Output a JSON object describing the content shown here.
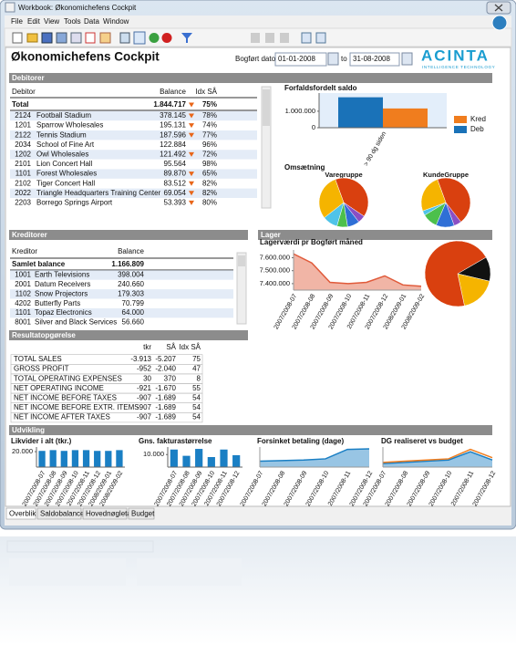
{
  "window": {
    "title": "Workbook: Økonomichefens Cockpit",
    "menu": [
      "File",
      "Edit",
      "View",
      "Tools",
      "Data",
      "Window"
    ]
  },
  "header": {
    "title": "Økonomichefens Cockpit",
    "date_label": "Bogført dato",
    "date_from": "01-01-2008",
    "date_sep": "to",
    "date_to": "31-08-2008",
    "logo": "ACINTA",
    "logo_tagline": "INTELLIGENCE TECHNOLOGY"
  },
  "sections": {
    "debitorer": "Debitorer",
    "kreditorer": "Kreditorer",
    "resultat": "Resultatopgørelse",
    "lager": "Lager",
    "udvikling": "Udvikling",
    "omsaetning": "Omsætning"
  },
  "debitorer": {
    "columns": [
      "Debitor",
      "Balance",
      "Idx SÅ"
    ],
    "total": {
      "name": "Total",
      "balance": "1.844.717",
      "down": true,
      "idx": "75%"
    },
    "rows": [
      {
        "code": "2124",
        "name": "Football Stadium",
        "balance": "378.145",
        "down": true,
        "idx": "78%"
      },
      {
        "code": "1201",
        "name": "Sparrow Wholesales",
        "balance": "195.131",
        "down": true,
        "idx": "74%"
      },
      {
        "code": "2122",
        "name": "Tennis Stadium",
        "balance": "187.596",
        "down": true,
        "idx": "77%"
      },
      {
        "code": "2034",
        "name": "School of Fine Art",
        "balance": "122.884",
        "down": false,
        "idx": "96%"
      },
      {
        "code": "1202",
        "name": "Owl Wholesales",
        "balance": "121.492",
        "down": true,
        "idx": "72%"
      },
      {
        "code": "2101",
        "name": "Lion Concert Hall",
        "balance": "95.564",
        "down": false,
        "idx": "98%"
      },
      {
        "code": "1101",
        "name": "Forest Wholesales",
        "balance": "89.870",
        "down": true,
        "idx": "65%"
      },
      {
        "code": "2102",
        "name": "Tiger Concert Hall",
        "balance": "83.512",
        "down": true,
        "idx": "82%"
      },
      {
        "code": "2022",
        "name": "Triangle Headquarters Training Center",
        "balance": "69.054",
        "down": true,
        "idx": "82%"
      },
      {
        "code": "2203",
        "name": "Borrego Springs Airport",
        "balance": "53.393",
        "down": true,
        "idx": "80%"
      }
    ]
  },
  "kreditorer": {
    "columns": [
      "Kreditor",
      "Balance"
    ],
    "total": {
      "name": "Samlet balance",
      "balance": "1.166.809"
    },
    "rows": [
      {
        "code": "1001",
        "name": "Earth Televisions",
        "balance": "398.004"
      },
      {
        "code": "2001",
        "name": "Datum Receivers",
        "balance": "240.660"
      },
      {
        "code": "1102",
        "name": "Snow Projectors",
        "balance": "179.303"
      },
      {
        "code": "4202",
        "name": "Butterfly Parts",
        "balance": "70.799"
      },
      {
        "code": "1101",
        "name": "Topaz Electronics",
        "balance": "64.000"
      },
      {
        "code": "8001",
        "name": "Silver and Black Services",
        "balance": "56.660"
      }
    ]
  },
  "resultat": {
    "columns": [
      "tkr",
      "SÅ",
      "Idx SÅ"
    ],
    "rows": [
      [
        "TOTAL SALES",
        "-3.913",
        "-5.207",
        "75"
      ],
      [
        "GROSS PROFIT",
        "-952",
        "-2.040",
        "47"
      ],
      [
        "TOTAL OPERATING EXPENSES",
        "30",
        "370",
        "8"
      ],
      [
        "NET OPERATING INCOME",
        "-921",
        "-1.670",
        "55"
      ],
      [
        "NET INCOME BEFORE TAXES",
        "-907",
        "-1.689",
        "54"
      ],
      [
        "NET INCOME BEFORE EXTR. ITEMS",
        "-907",
        "-1.689",
        "54"
      ],
      [
        "NET INCOME AFTER TAXES",
        "-907",
        "-1.689",
        "54"
      ]
    ]
  },
  "tabs": [
    "Overblik",
    "Saldobalance",
    "Hovednøgletal",
    "Budget"
  ],
  "chart_data": [
    {
      "type": "bar",
      "title": "Forfaldsfordelt saldo",
      "categories": [
        "> 90 dg siden"
      ],
      "series": [
        {
          "name": "Deb",
          "color": "#1a72b8",
          "values": [
            1844717
          ]
        },
        {
          "name": "Kred",
          "color": "#f07d1e",
          "values": [
            1166809
          ]
        }
      ],
      "ylim": [
        0,
        2100000
      ],
      "yticks": [
        0,
        {
          "value": 1000000,
          "label": "1.000.000"
        }
      ],
      "legend": "right"
    },
    {
      "type": "pie",
      "title": "Varegruppe",
      "values": [
        40,
        5,
        8,
        7,
        10,
        30
      ],
      "colors": [
        "#d9400f",
        "#8a4fc4",
        "#2f6fd6",
        "#4cc04c",
        "#4fc3e8",
        "#f5b400"
      ]
    },
    {
      "type": "pie",
      "title": "KundeGruppe",
      "values": [
        45,
        5,
        12,
        10,
        3,
        25
      ],
      "colors": [
        "#d9400f",
        "#8a4fc4",
        "#2f6fd6",
        "#4cc04c",
        "#4fc3e8",
        "#f5b400"
      ]
    },
    {
      "type": "line",
      "title": "Lagerværdi pr Bogført måned",
      "area": true,
      "color": "#e05a3a",
      "categories": [
        "2007/2008-07",
        "2007/2008-08",
        "2007/2008-09",
        "2007/2008-10",
        "2007/2008-11",
        "2007/2008-12",
        "2008/2009-01",
        "2008/2009-02"
      ],
      "values": [
        7630000,
        7560000,
        7410000,
        7400000,
        7410000,
        7460000,
        7390000,
        7380000
      ],
      "ylim": [
        7350000,
        7660000
      ],
      "yticks": [
        {
          "value": 7400000,
          "label": "7.400.000"
        },
        {
          "value": 7500000,
          "label": "7.500.000"
        },
        {
          "value": 7600000,
          "label": "7.600.000"
        }
      ]
    },
    {
      "type": "pie",
      "values": [
        12,
        18,
        70
      ],
      "colors": [
        "#111111",
        "#f5b400",
        "#d9400f"
      ]
    },
    {
      "type": "bar",
      "title": "Likvider i alt (tkr.)",
      "color": "#1a7fc4",
      "categories": [
        "2007/2008-07",
        "2007/2008-08",
        "2007/2008-09",
        "2007/2008-10",
        "2007/2008-11",
        "2007/2008-12",
        "2008/2009-01",
        "2008/2009-02"
      ],
      "values": [
        21000,
        22000,
        21000,
        22000,
        22000,
        21000,
        21000,
        22000
      ],
      "ylim": [
        0,
        26000
      ],
      "yticks": [
        {
          "value": 20000,
          "label": "20.000"
        }
      ]
    },
    {
      "type": "bar",
      "title": "Gns. fakturastørrelse",
      "color": "#1a7fc4",
      "categories": [
        "2007/2008-07",
        "2007/2008-08",
        "2007/2008-09",
        "2007/2008-10",
        "2007/2008-11",
        "2007/2008-12"
      ],
      "values": [
        14000,
        9000,
        14500,
        8000,
        14000,
        9500
      ],
      "ylim": [
        0,
        16000
      ],
      "yticks": [
        {
          "value": 10000,
          "label": "10.000"
        }
      ]
    },
    {
      "type": "line",
      "title": "Forsinket betaling (dage)",
      "area": true,
      "color": "#1a7fc4",
      "categories": [
        "2007/2008-07",
        "2007/2008-08",
        "2007/2008-09",
        "2007/2008-10",
        "2007/2008-11",
        "2007/2008-12"
      ],
      "values": [
        10,
        11,
        12,
        14,
        30,
        31
      ],
      "ylim": [
        0,
        34
      ]
    },
    {
      "type": "line",
      "title": "DG realiseret vs budget",
      "categories": [
        "2007/2008-07",
        "2007/2008-08",
        "2007/2008-09",
        "2007/2008-10",
        "2007/2008-11",
        "2007/2008-12"
      ],
      "series": [
        {
          "color": "#f07d1e",
          "values": [
            8,
            10,
            12,
            14,
            30,
            16
          ]
        },
        {
          "color": "#1a7fc4",
          "area": true,
          "values": [
            6,
            8,
            10,
            12,
            26,
            12
          ]
        }
      ],
      "ylim": [
        0,
        34
      ]
    }
  ]
}
